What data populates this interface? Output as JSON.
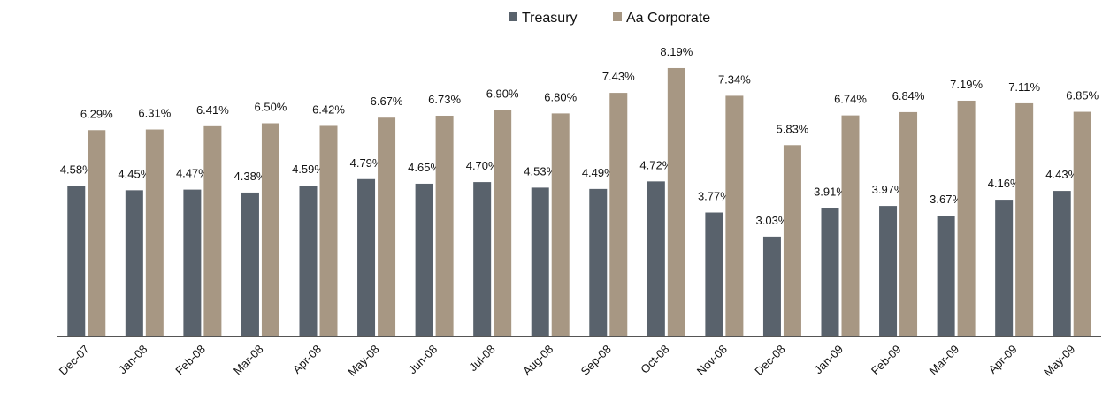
{
  "chart_data": {
    "type": "bar",
    "categories": [
      "Dec-07",
      "Jan-08",
      "Feb-08",
      "Mar-08",
      "Apr-08",
      "May-08",
      "Jun-08",
      "Jul-08",
      "Aug-08",
      "Sep-08",
      "Oct-08",
      "Nov-08",
      "Dec-08",
      "Jan-09",
      "Feb-09",
      "Mar-09",
      "Apr-09",
      "May-09"
    ],
    "series": [
      {
        "name": "Treasury",
        "color": "#59626c",
        "values": [
          4.58,
          4.45,
          4.47,
          4.38,
          4.59,
          4.79,
          4.65,
          4.7,
          4.53,
          4.49,
          4.72,
          3.77,
          3.03,
          3.91,
          3.97,
          3.67,
          4.16,
          4.43
        ],
        "value_labels": [
          "4.58%",
          "4.45%",
          "4.47%",
          "4.38%",
          "4.59%",
          "4.79%",
          "4.65%",
          "4.70%",
          "4.53%",
          "4.49%",
          "4.72%",
          "3.77%",
          "3.03%",
          "3.91%",
          "3.97%",
          "3.67%",
          "4.16%",
          "4.43%"
        ]
      },
      {
        "name": "Aa Corporate",
        "color": "#a79783",
        "values": [
          6.29,
          6.31,
          6.41,
          6.5,
          6.42,
          6.67,
          6.73,
          6.9,
          6.8,
          7.43,
          8.19,
          7.34,
          5.83,
          6.74,
          6.84,
          7.19,
          7.11,
          6.85
        ],
        "value_labels": [
          "6.29%",
          "6.31%",
          "6.41%",
          "6.50%",
          "6.42%",
          "6.67%",
          "6.73%",
          "6.90%",
          "6.80%",
          "7.43%",
          "8.19%",
          "7.34%",
          "5.83%",
          "6.74%",
          "6.84%",
          "7.19%",
          "7.11%",
          "6.85%"
        ]
      }
    ],
    "ylim": [
      0,
      9
    ],
    "legend": "top"
  }
}
